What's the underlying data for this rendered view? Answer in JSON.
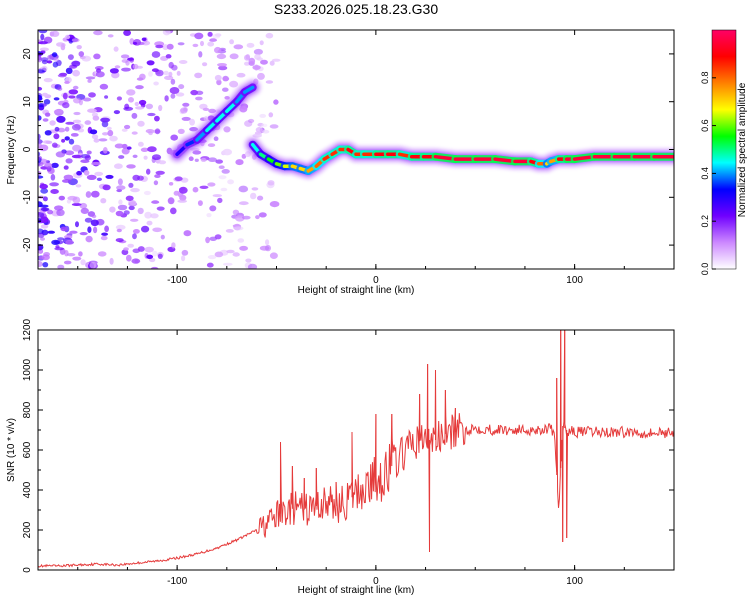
{
  "title": "S233.2026.025.18.23.G30",
  "chart_data": [
    {
      "type": "heatmap",
      "name": "spectrogram",
      "xlabel": "Height of straight line (km)",
      "ylabel": "Frequency (Hz)",
      "xlim": [
        -170,
        150
      ],
      "ylim": [
        -25,
        25
      ],
      "xticks": [
        -100,
        0,
        100
      ],
      "xtick_labels": [
        "-100",
        "0",
        "100"
      ],
      "yticks": [
        -20,
        -10,
        0,
        10,
        20
      ],
      "ytick_labels": [
        "-20",
        "-10",
        "0",
        "10",
        "20"
      ],
      "colorbar": {
        "label": "Normalized spectral amplitude",
        "range": [
          0,
          1
        ],
        "ticks": [
          0,
          0.2,
          0.4,
          0.6,
          0.8
        ],
        "tick_labels": [
          "0.0",
          "0.2",
          "0.4",
          "0.6",
          "0.8"
        ],
        "colors": [
          "#ffffff",
          "#cc88ff",
          "#7000ff",
          "#0000ff",
          "#00ffff",
          "#00ff00",
          "#ffff00",
          "#ff8000",
          "#ff0000",
          "#ff0066"
        ]
      },
      "ridge": {
        "x": [
          -62,
          -58,
          -54,
          -50,
          -46,
          -42,
          -38,
          -34,
          -30,
          -26,
          -22,
          -18,
          -14,
          -10,
          -6,
          0,
          6,
          12,
          18,
          24,
          30,
          40,
          50,
          60,
          70,
          78,
          82,
          86,
          88,
          92,
          96,
          100,
          110,
          120,
          130,
          140,
          150
        ],
        "y": [
          1,
          -1,
          -2,
          -3,
          -3.5,
          -3.5,
          -4,
          -4.5,
          -3.5,
          -2,
          -1,
          0,
          0,
          -1,
          -1,
          -1,
          -1,
          -1,
          -1.5,
          -1.5,
          -1.5,
          -2,
          -2,
          -2,
          -2.5,
          -2.5,
          -3,
          -3,
          -2.5,
          -2,
          -2,
          -2,
          -1.5,
          -1.5,
          -1.5,
          -1.5,
          -1.5
        ],
        "amplitude": [
          0.45,
          0.5,
          0.55,
          0.6,
          0.65,
          0.7,
          0.7,
          0.75,
          0.8,
          0.85,
          0.85,
          0.85,
          0.9,
          0.85,
          0.85,
          0.9,
          0.9,
          0.85,
          0.9,
          0.9,
          0.95,
          0.95,
          0.95,
          0.95,
          0.95,
          0.9,
          0.8,
          0.7,
          0.75,
          0.9,
          0.95,
          0.95,
          0.95,
          0.95,
          0.95,
          0.95,
          0.95
        ]
      },
      "branch": {
        "x": [
          -100,
          -95,
          -90,
          -85,
          -80,
          -75,
          -70,
          -66,
          -62
        ],
        "y": [
          -1,
          1,
          2,
          4,
          6,
          8,
          10,
          12,
          13
        ],
        "amplitude": [
          0.3,
          0.35,
          0.4,
          0.45,
          0.45,
          0.45,
          0.4,
          0.4,
          0.35
        ]
      }
    },
    {
      "type": "line",
      "name": "snr",
      "xlabel": "Height of straight line (km)",
      "ylabel": "SNR (10 * v/v)",
      "xlim": [
        -170,
        150
      ],
      "ylim": [
        0,
        1200
      ],
      "xticks": [
        -100,
        0,
        100
      ],
      "xtick_labels": [
        "-100",
        "0",
        "100"
      ],
      "yticks": [
        0,
        200,
        400,
        600,
        800,
        1000,
        1200
      ],
      "ytick_labels": [
        "0",
        "200",
        "400",
        "600",
        "800",
        "1000",
        "1200"
      ],
      "color": "#e53b3b",
      "series": [
        {
          "name": "SNR",
          "x": [
            -170,
            -160,
            -150,
            -140,
            -130,
            -120,
            -110,
            -100,
            -90,
            -80,
            -70,
            -60,
            -55,
            -50,
            -45,
            -40,
            -35,
            -30,
            -25,
            -20,
            -15,
            -10,
            -5,
            0,
            5,
            10,
            15,
            20,
            25,
            30,
            35,
            40,
            45,
            50,
            60,
            70,
            80,
            88,
            90,
            92,
            94,
            96,
            100,
            110,
            120,
            130,
            140,
            150
          ],
          "y": [
            20,
            20,
            25,
            30,
            25,
            35,
            45,
            60,
            80,
            110,
            150,
            200,
            230,
            270,
            300,
            310,
            300,
            320,
            340,
            320,
            340,
            380,
            420,
            450,
            490,
            540,
            600,
            640,
            650,
            650,
            680,
            690,
            700,
            710,
            700,
            700,
            700,
            710,
            650,
            300,
            720,
            700,
            690,
            690,
            690,
            690,
            685,
            690
          ]
        }
      ],
      "spikes": [
        {
          "x": -48,
          "y": 640
        },
        {
          "x": -42,
          "y": 520
        },
        {
          "x": -36,
          "y": 460
        },
        {
          "x": -30,
          "y": 510
        },
        {
          "x": -20,
          "y": 440
        },
        {
          "x": -12,
          "y": 690
        },
        {
          "x": 0,
          "y": 780
        },
        {
          "x": 8,
          "y": 780
        },
        {
          "x": 22,
          "y": 880
        },
        {
          "x": 26,
          "y": 1030
        },
        {
          "x": 27,
          "y": 90
        },
        {
          "x": 30,
          "y": 1000
        },
        {
          "x": 35,
          "y": 900
        },
        {
          "x": 40,
          "y": 810
        },
        {
          "x": 91,
          "y": 960
        },
        {
          "x": 93,
          "y": 1210
        },
        {
          "x": 94,
          "y": 140
        },
        {
          "x": 95,
          "y": 1210
        },
        {
          "x": 96,
          "y": 160
        }
      ]
    }
  ]
}
